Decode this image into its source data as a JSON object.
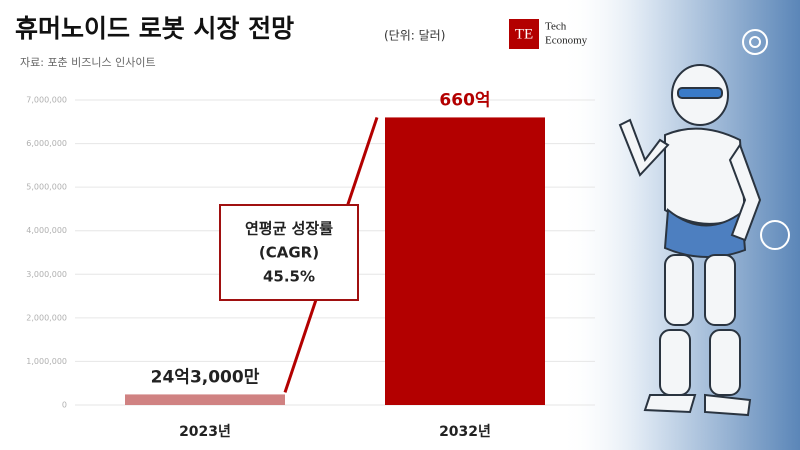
{
  "chart_data": {
    "type": "bar",
    "title": "휴머노이드 로봇 시장 전망",
    "subtitle": "(단위: 달러)",
    "source": "자료: 포춘 비즈니스 인사이트",
    "categories": [
      "2023년",
      "2032년"
    ],
    "values": [
      243000,
      6600000
    ],
    "value_labels": [
      "24억3,000만",
      "660억"
    ],
    "colors": [
      "#d08282",
      "#b30000"
    ],
    "ylim": [
      0,
      7000000
    ],
    "yticks": [
      0,
      {
        "value": 1000000,
        "label": "1,000,000"
      },
      {
        "value": 2000000,
        "label": "2,000,000"
      },
      {
        "value": 3000000,
        "label": "3,000,000"
      },
      {
        "value": 4000000,
        "label": "4,000,000"
      },
      {
        "value": 5000000,
        "label": "5,000,000"
      },
      {
        "value": 6000000,
        "label": "6,000,000"
      },
      {
        "value": 7000000,
        "label": "7,000,000"
      }
    ],
    "grid": true,
    "annotation": {
      "lines": [
        "연평균 성장률",
        "(CAGR)",
        "45.5%"
      ]
    }
  },
  "logo": {
    "mark": "TE",
    "line1": "Tech",
    "line2": "Economy"
  }
}
